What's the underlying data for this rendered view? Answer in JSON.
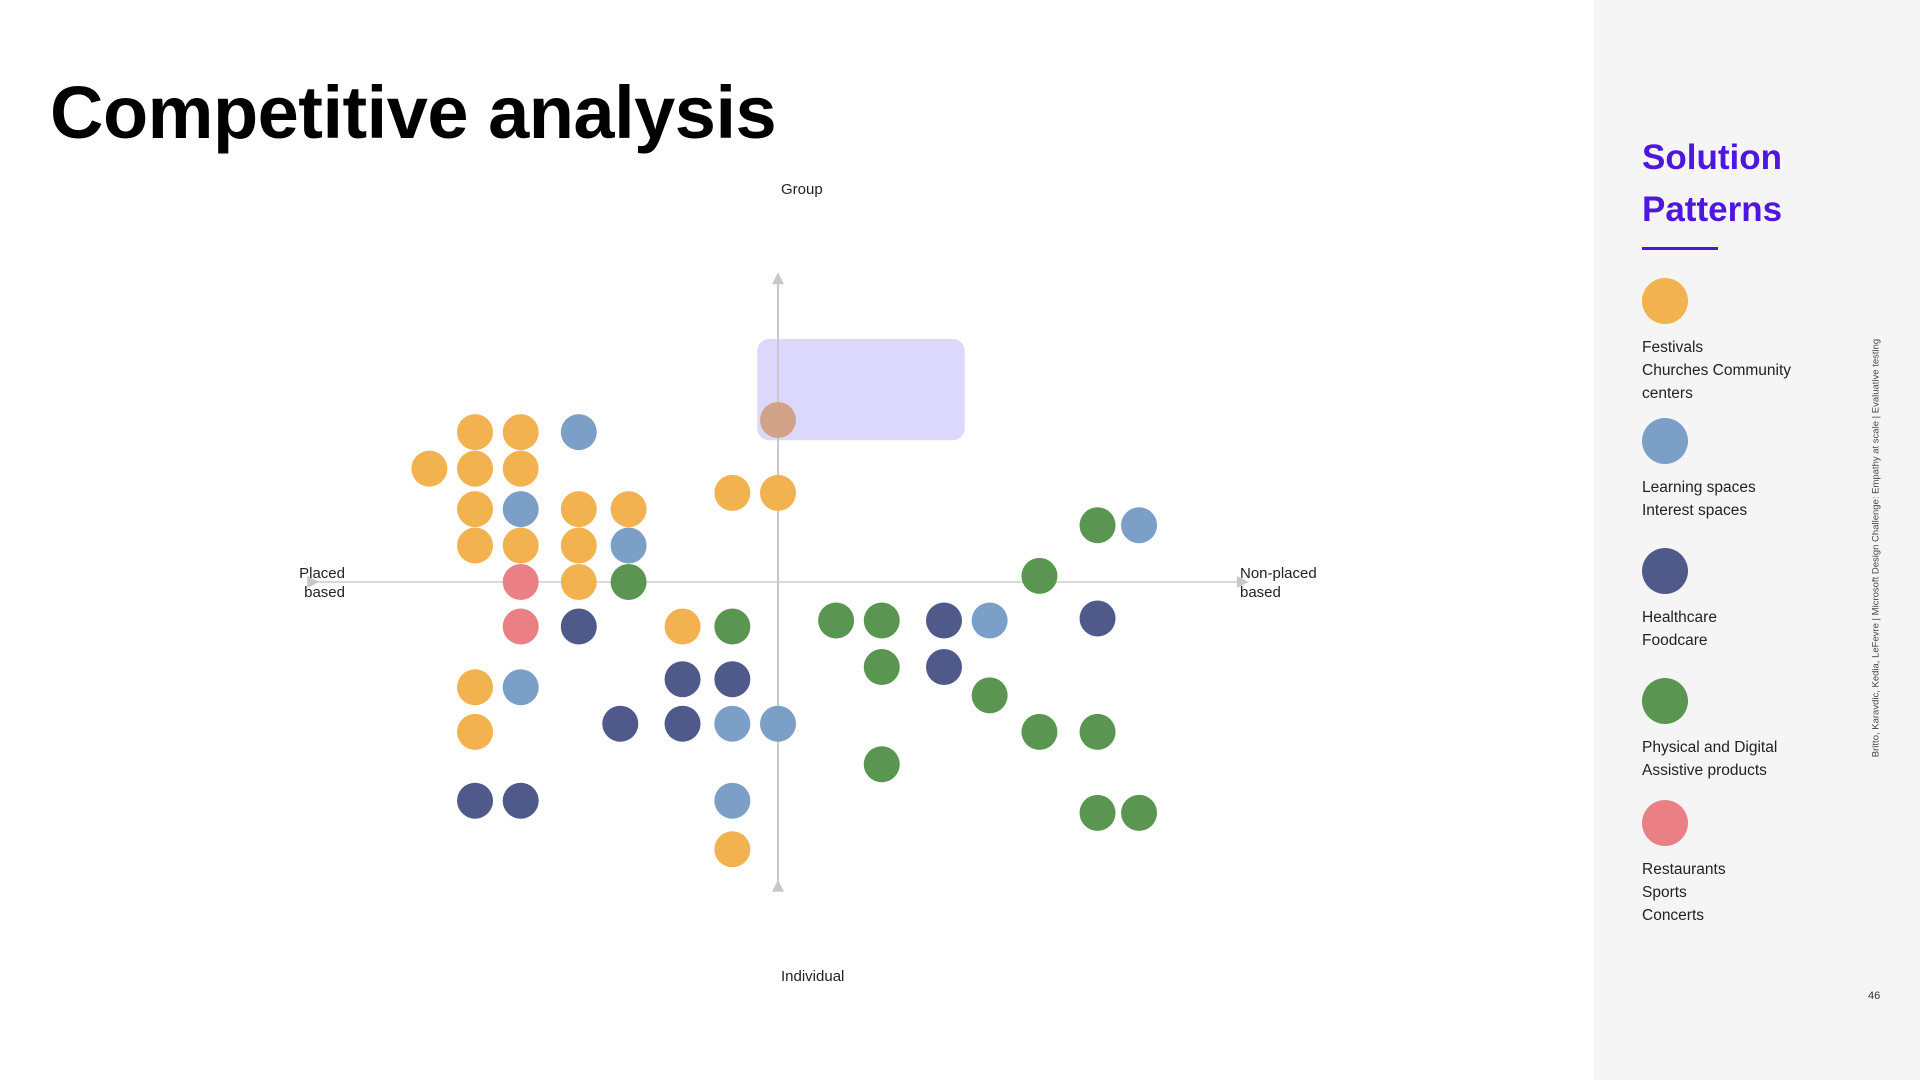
{
  "title": "Competitive analysis",
  "sidebar": {
    "title_line1": "Solution",
    "title_line2": "Patterns",
    "accent": "#4f16e0",
    "legend": [
      {
        "color": "#f2b24f",
        "lines": [
          "Festivals",
          "Churches Community",
          "centers"
        ]
      },
      {
        "color": "#7b9fc7",
        "lines": [
          "Learning spaces",
          "Interest spaces"
        ]
      },
      {
        "color": "#4f5a8a",
        "lines": [
          "Healthcare",
          "Foodcare"
        ]
      },
      {
        "color": "#5a9651",
        "lines": [
          "Physical and Digital",
          "Assistive products"
        ]
      },
      {
        "color": "#ea8086",
        "lines": [
          "Restaurants",
          "Sports",
          "Concerts"
        ]
      }
    ]
  },
  "footnote": "Britto, Karavdic, Kedia, LeFevre | Microsoft Design Challenge: Empathy at scale | Evaluative testing",
  "page_number": "46",
  "chart_data": {
    "type": "scatter",
    "x_axis": {
      "negative_label": [
        "Placed",
        "based"
      ],
      "positive_label": [
        "Non-placed",
        "based"
      ],
      "range": [
        -10,
        10
      ]
    },
    "y_axis": {
      "positive_label": "Group",
      "negative_label": "Individual",
      "range": [
        -10,
        10
      ]
    },
    "highlight_region": {
      "x": [
        -0.5,
        4.5
      ],
      "y": [
        3.5,
        6.0
      ],
      "color": "#dcd8fb"
    },
    "colors": {
      "festivals": "#f2b24f",
      "learning": "#7b9fc7",
      "health": "#4f5a8a",
      "assistive": "#5a9651",
      "restaurants": "#ea8086",
      "highlighted": "#d2a288"
    },
    "points": [
      {
        "x": -7.3,
        "y": 3.7,
        "cat": "festivals"
      },
      {
        "x": -6.2,
        "y": 3.7,
        "cat": "festivals"
      },
      {
        "x": -4.8,
        "y": 3.7,
        "cat": "learning"
      },
      {
        "x": -8.4,
        "y": 2.8,
        "cat": "festivals"
      },
      {
        "x": -7.3,
        "y": 2.8,
        "cat": "festivals"
      },
      {
        "x": -6.2,
        "y": 2.8,
        "cat": "festivals"
      },
      {
        "x": 0.0,
        "y": 4.0,
        "cat": "highlighted"
      },
      {
        "x": -1.1,
        "y": 2.2,
        "cat": "festivals"
      },
      {
        "x": 0.0,
        "y": 2.2,
        "cat": "festivals"
      },
      {
        "x": -7.3,
        "y": 1.8,
        "cat": "festivals"
      },
      {
        "x": -6.2,
        "y": 1.8,
        "cat": "learning"
      },
      {
        "x": -4.8,
        "y": 1.8,
        "cat": "festivals"
      },
      {
        "x": -3.6,
        "y": 1.8,
        "cat": "festivals"
      },
      {
        "x": -7.3,
        "y": 0.9,
        "cat": "festivals"
      },
      {
        "x": -6.2,
        "y": 0.9,
        "cat": "festivals"
      },
      {
        "x": -4.8,
        "y": 0.9,
        "cat": "festivals"
      },
      {
        "x": -3.6,
        "y": 0.9,
        "cat": "learning"
      },
      {
        "x": -6.2,
        "y": 0.0,
        "cat": "restaurants"
      },
      {
        "x": -4.8,
        "y": 0.0,
        "cat": "festivals"
      },
      {
        "x": -3.6,
        "y": 0.0,
        "cat": "assistive"
      },
      {
        "x": 7.7,
        "y": 1.4,
        "cat": "assistive"
      },
      {
        "x": 8.7,
        "y": 1.4,
        "cat": "learning"
      },
      {
        "x": 6.3,
        "y": 0.15,
        "cat": "assistive"
      },
      {
        "x": -6.2,
        "y": -1.1,
        "cat": "restaurants"
      },
      {
        "x": -4.8,
        "y": -1.1,
        "cat": "health"
      },
      {
        "x": -2.3,
        "y": -1.1,
        "cat": "festivals"
      },
      {
        "x": -1.1,
        "y": -1.1,
        "cat": "assistive"
      },
      {
        "x": 1.4,
        "y": -0.95,
        "cat": "assistive"
      },
      {
        "x": 2.5,
        "y": -0.95,
        "cat": "assistive"
      },
      {
        "x": 4.0,
        "y": -0.95,
        "cat": "health"
      },
      {
        "x": 5.1,
        "y": -0.95,
        "cat": "learning"
      },
      {
        "x": 7.7,
        "y": -0.9,
        "cat": "health"
      },
      {
        "x": 2.5,
        "y": -2.1,
        "cat": "assistive"
      },
      {
        "x": 4.0,
        "y": -2.1,
        "cat": "health"
      },
      {
        "x": -2.3,
        "y": -2.4,
        "cat": "health"
      },
      {
        "x": -1.1,
        "y": -2.4,
        "cat": "health"
      },
      {
        "x": -7.3,
        "y": -2.6,
        "cat": "festivals"
      },
      {
        "x": -6.2,
        "y": -2.6,
        "cat": "learning"
      },
      {
        "x": 5.1,
        "y": -2.8,
        "cat": "assistive"
      },
      {
        "x": -3.8,
        "y": -3.5,
        "cat": "health"
      },
      {
        "x": -2.3,
        "y": -3.5,
        "cat": "health"
      },
      {
        "x": -1.1,
        "y": -3.5,
        "cat": "learning"
      },
      {
        "x": 0.0,
        "y": -3.5,
        "cat": "learning"
      },
      {
        "x": -7.3,
        "y": -3.7,
        "cat": "festivals"
      },
      {
        "x": 6.3,
        "y": -3.7,
        "cat": "assistive"
      },
      {
        "x": 7.7,
        "y": -3.7,
        "cat": "assistive"
      },
      {
        "x": 2.5,
        "y": -4.5,
        "cat": "assistive"
      },
      {
        "x": -7.3,
        "y": -5.4,
        "cat": "health"
      },
      {
        "x": -6.2,
        "y": -5.4,
        "cat": "health"
      },
      {
        "x": -1.1,
        "y": -5.4,
        "cat": "learning"
      },
      {
        "x": 7.7,
        "y": -5.7,
        "cat": "assistive"
      },
      {
        "x": 8.7,
        "y": -5.7,
        "cat": "assistive"
      },
      {
        "x": -1.1,
        "y": -6.6,
        "cat": "festivals"
      }
    ]
  }
}
